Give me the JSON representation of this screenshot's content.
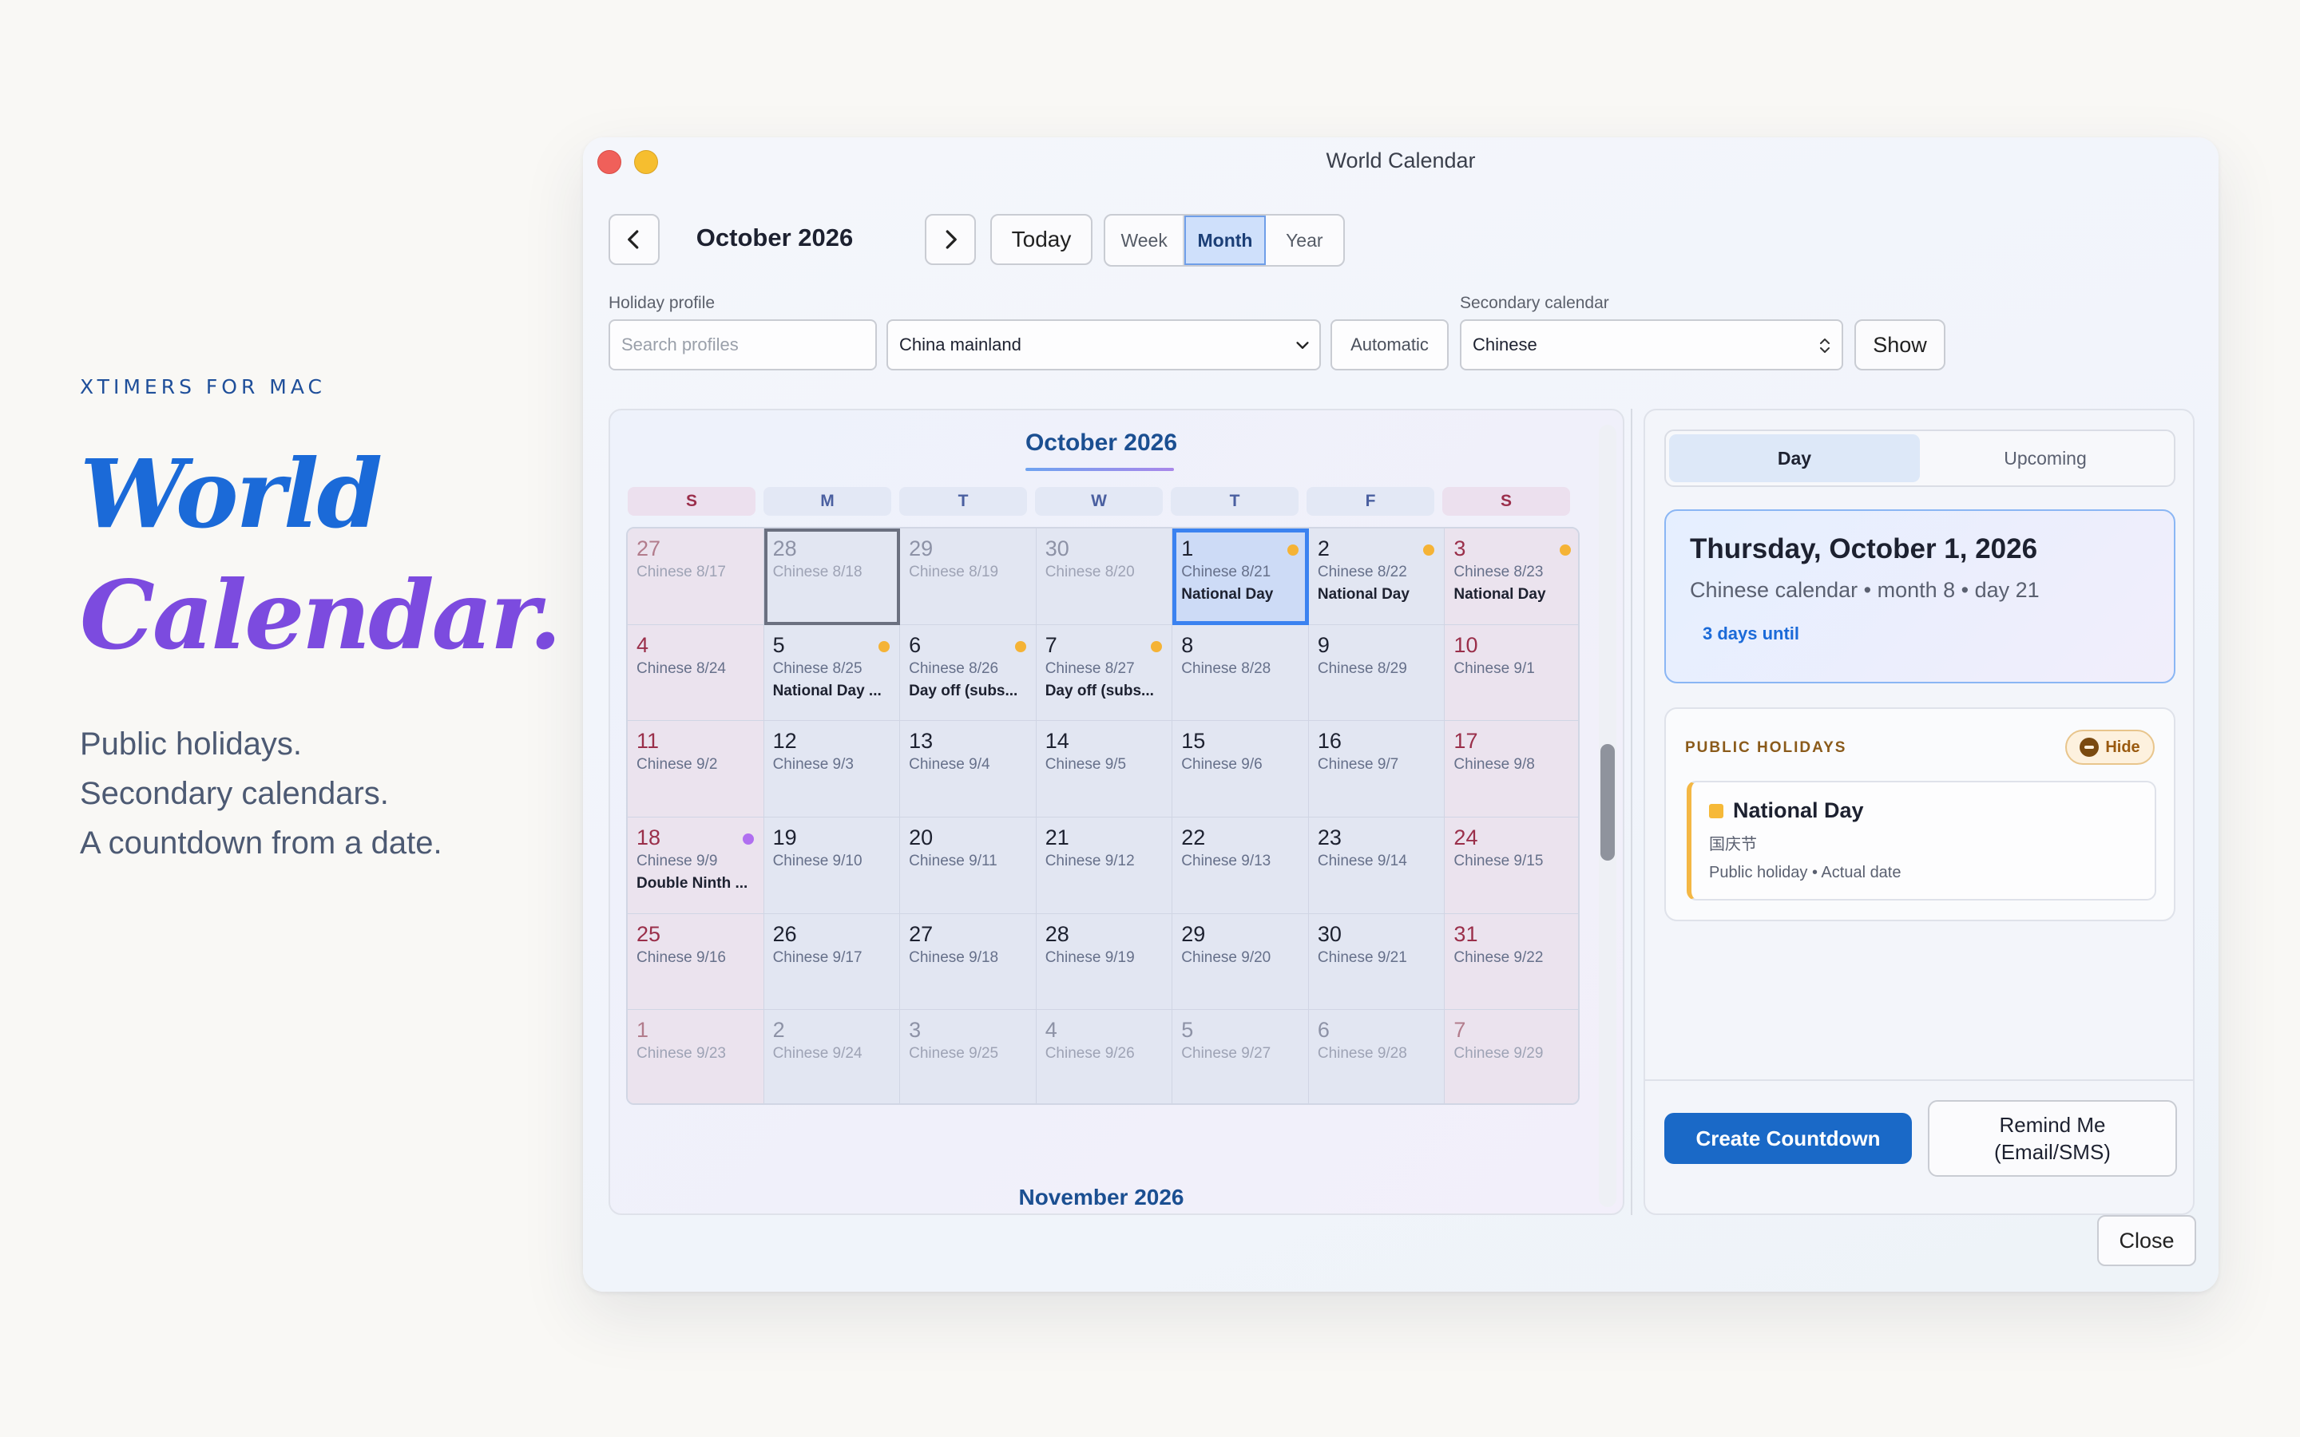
{
  "promo": {
    "eyebrow": "XTIMERS FOR MAC",
    "hero_line1": "World",
    "hero_line2": "Calendar.",
    "tagline": [
      "Public holidays.",
      "Secondary calendars.",
      "A countdown from a date."
    ]
  },
  "window": {
    "title": "World Calendar",
    "month_title": "October 2026",
    "today_label": "Today",
    "views": [
      "Week",
      "Month",
      "Year"
    ],
    "active_view": "Month"
  },
  "filters": {
    "holiday_label": "Holiday profile",
    "search_placeholder": "Search profiles",
    "profile_value": "China mainland",
    "automatic_label": "Automatic",
    "secondary_label": "Secondary calendar",
    "secondary_value": "Chinese",
    "show_label": "Show"
  },
  "calendar": {
    "month_label": "October 2026",
    "next_month_label": "November 2026",
    "weekdays": [
      "S",
      "M",
      "T",
      "W",
      "T",
      "F",
      "S"
    ],
    "weeks": [
      [
        {
          "d": "27",
          "sub": "Chinese 8/17",
          "dim": true
        },
        {
          "d": "28",
          "sub": "Chinese 8/18",
          "dim": true,
          "cursor": true
        },
        {
          "d": "29",
          "sub": "Chinese 8/19",
          "dim": true
        },
        {
          "d": "30",
          "sub": "Chinese 8/20",
          "dim": true
        },
        {
          "d": "1",
          "sub": "Chinese 8/21",
          "ev": "National Day",
          "dot": "#f5b336",
          "selected": true
        },
        {
          "d": "2",
          "sub": "Chinese 8/22",
          "ev": "National Day",
          "dot": "#f5b336"
        },
        {
          "d": "3",
          "sub": "Chinese 8/23",
          "ev": "National Day",
          "dot": "#f5b336"
        }
      ],
      [
        {
          "d": "4",
          "sub": "Chinese 8/24"
        },
        {
          "d": "5",
          "sub": "Chinese 8/25",
          "ev": "National Day ...",
          "dot": "#f5b336"
        },
        {
          "d": "6",
          "sub": "Chinese 8/26",
          "ev": "Day off (subs...",
          "dot": "#f5b336"
        },
        {
          "d": "7",
          "sub": "Chinese 8/27",
          "ev": "Day off (subs...",
          "dot": "#f5b336"
        },
        {
          "d": "8",
          "sub": "Chinese 8/28"
        },
        {
          "d": "9",
          "sub": "Chinese 8/29"
        },
        {
          "d": "10",
          "sub": "Chinese 9/1"
        }
      ],
      [
        {
          "d": "11",
          "sub": "Chinese 9/2"
        },
        {
          "d": "12",
          "sub": "Chinese 9/3"
        },
        {
          "d": "13",
          "sub": "Chinese 9/4"
        },
        {
          "d": "14",
          "sub": "Chinese 9/5"
        },
        {
          "d": "15",
          "sub": "Chinese 9/6"
        },
        {
          "d": "16",
          "sub": "Chinese 9/7"
        },
        {
          "d": "17",
          "sub": "Chinese 9/8"
        }
      ],
      [
        {
          "d": "18",
          "sub": "Chinese 9/9",
          "ev": "Double Ninth ...",
          "dot": "#b06ff0"
        },
        {
          "d": "19",
          "sub": "Chinese 9/10"
        },
        {
          "d": "20",
          "sub": "Chinese 9/11"
        },
        {
          "d": "21",
          "sub": "Chinese 9/12"
        },
        {
          "d": "22",
          "sub": "Chinese 9/13"
        },
        {
          "d": "23",
          "sub": "Chinese 9/14"
        },
        {
          "d": "24",
          "sub": "Chinese 9/15"
        }
      ],
      [
        {
          "d": "25",
          "sub": "Chinese 9/16"
        },
        {
          "d": "26",
          "sub": "Chinese 9/17"
        },
        {
          "d": "27",
          "sub": "Chinese 9/18"
        },
        {
          "d": "28",
          "sub": "Chinese 9/19"
        },
        {
          "d": "29",
          "sub": "Chinese 9/20"
        },
        {
          "d": "30",
          "sub": "Chinese 9/21"
        },
        {
          "d": "31",
          "sub": "Chinese 9/22"
        }
      ],
      [
        {
          "d": "1",
          "sub": "Chinese 9/23",
          "dim": true
        },
        {
          "d": "2",
          "sub": "Chinese 9/24",
          "dim": true
        },
        {
          "d": "3",
          "sub": "Chinese 9/25",
          "dim": true
        },
        {
          "d": "4",
          "sub": "Chinese 9/26",
          "dim": true
        },
        {
          "d": "5",
          "sub": "Chinese 9/27",
          "dim": true
        },
        {
          "d": "6",
          "sub": "Chinese 9/28",
          "dim": true
        },
        {
          "d": "7",
          "sub": "Chinese 9/29",
          "dim": true
        }
      ]
    ]
  },
  "detail": {
    "tabs": [
      "Day",
      "Upcoming"
    ],
    "active_tab": "Day",
    "date_title": "Thursday, October 1, 2026",
    "secondary_line": "Chinese calendar • month 8 • day 21",
    "countdown": "3 days until",
    "holidays_header": "PUBLIC HOLIDAYS",
    "hide_label": "Hide",
    "holiday": {
      "name": "National Day",
      "local_name": "国庆节",
      "meta": "Public holiday • Actual date",
      "color": "#f6b938"
    },
    "create_label": "Create Countdown",
    "remind_label": "Remind Me (Email/SMS)"
  },
  "close_label": "Close",
  "colors": {
    "accent": "#1a69c7",
    "selection": "#3b82f0",
    "weekend_text": "#9a2f4a"
  }
}
